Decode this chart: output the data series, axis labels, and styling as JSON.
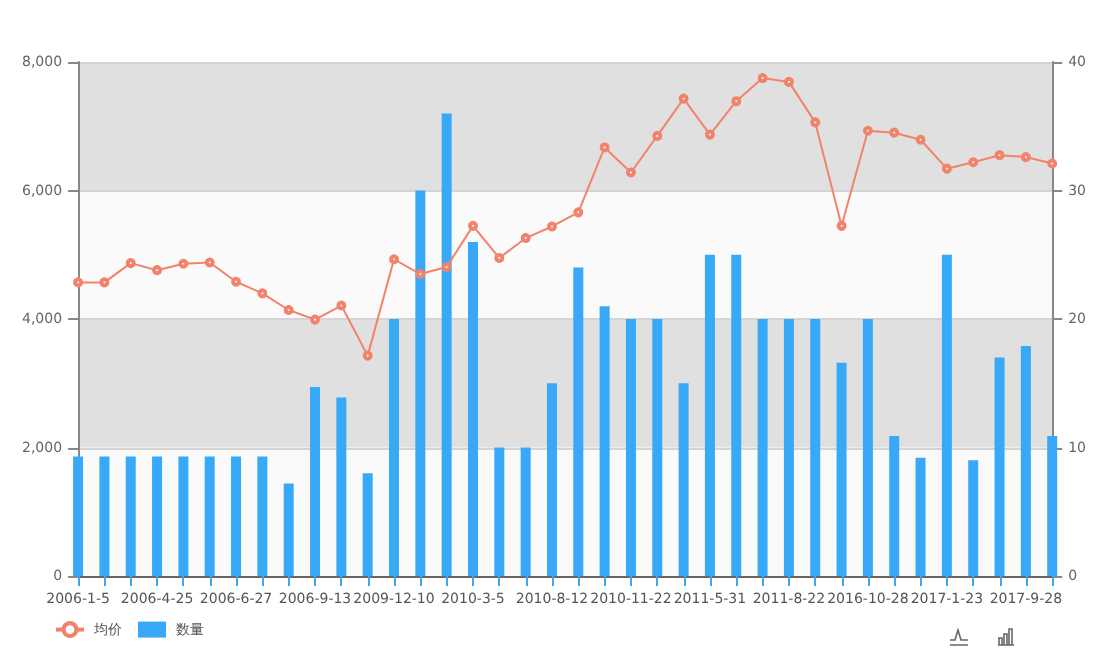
{
  "chart_data": {
    "type": "bar",
    "categories": [
      "2006-1-5",
      null,
      null,
      "2006-4-25",
      null,
      null,
      "2006-6-27",
      null,
      null,
      "2006-9-13",
      null,
      null,
      "2009-12-10",
      null,
      null,
      "2010-3-5",
      null,
      null,
      "2010-8-12",
      null,
      null,
      "2010-11-22",
      null,
      null,
      "2011-5-31",
      null,
      null,
      "2011-8-22",
      null,
      null,
      "2016-10-28",
      null,
      null,
      "2017-1-23",
      null,
      null,
      "2017-9-28",
      null
    ],
    "series": [
      {
        "name": "均价",
        "type": "line",
        "color": "#f2836b",
        "values": [
          4570,
          4570,
          4870,
          4760,
          4860,
          4880,
          4580,
          4400,
          4140,
          3990,
          4210,
          3430,
          4930,
          4700,
          4810,
          5450,
          4950,
          5260,
          5440,
          5660,
          6670,
          6280,
          6850,
          7430,
          6870,
          7390,
          7750,
          7690,
          7060,
          5450,
          6930,
          6900,
          6790,
          6340,
          6440,
          6550,
          6520,
          6420
        ]
      },
      {
        "name": "数量",
        "type": "bar",
        "axis": "y2",
        "color": "#38a8f8",
        "values": [
          9.3,
          9.3,
          9.3,
          9.3,
          9.3,
          9.3,
          9.3,
          9.3,
          7.2,
          14.7,
          13.9,
          8,
          20,
          30,
          36,
          26,
          10,
          10,
          15,
          24,
          21,
          20,
          20,
          15,
          25,
          25,
          20,
          20,
          20,
          16.6,
          20,
          10.9,
          9.2,
          25,
          9,
          17,
          17.9,
          10.9
        ]
      }
    ],
    "ylim": [
      0,
      8000
    ],
    "yticks": [
      0,
      {
        "value": 2000,
        "label": "2,000"
      },
      {
        "value": 4000,
        "label": "4,000"
      },
      {
        "value": 6000,
        "label": "6,000"
      },
      {
        "value": 8000,
        "label": "8,000"
      }
    ],
    "y2lim": [
      0,
      40
    ],
    "y2ticks": [
      0,
      10,
      20,
      30,
      40
    ],
    "grid": "y",
    "legend": "bottom left",
    "marker": "circle"
  }
}
